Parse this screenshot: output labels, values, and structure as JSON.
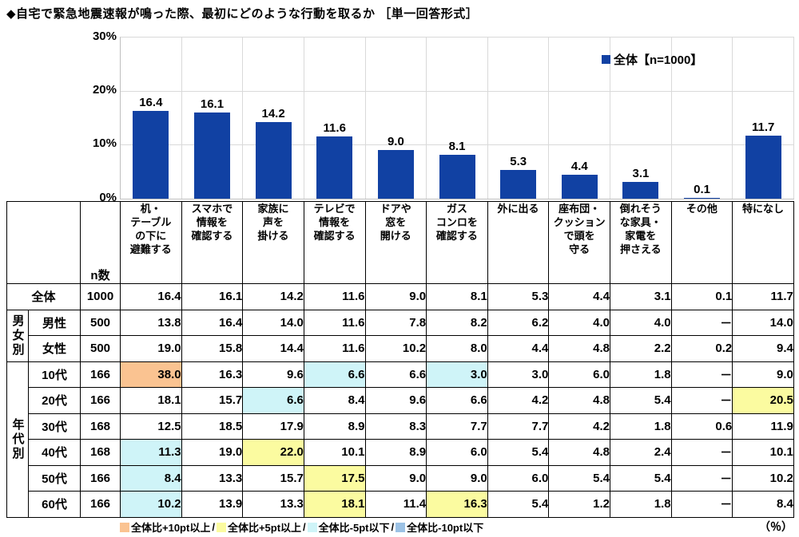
{
  "title": "◆自宅で緊急地震速報が鳴った際、最初にどのような行動を取るか ［単一回答形式］",
  "chart_data": {
    "type": "bar",
    "title": "自宅で緊急地震速報が鳴った際、最初にどのような行動を取るか（単一回答形式）",
    "categories": [
      "机・テーブルの下に避難する",
      "スマホで情報を確認する",
      "家族に声を掛ける",
      "テレビで情報を確認する",
      "ドアや窓を開ける",
      "ガスコンロを確認する",
      "外に出る",
      "座布団・クッションで頭を守る",
      "倒れそうな家具・家電を押さえる",
      "その他",
      "特になし"
    ],
    "values": [
      16.4,
      16.1,
      14.2,
      11.6,
      9.0,
      8.1,
      5.3,
      4.4,
      3.1,
      0.1,
      11.7
    ],
    "labels": [
      "16.4",
      "16.1",
      "14.2",
      "11.6",
      "9.0",
      "8.1",
      "5.3",
      "4.4",
      "3.1",
      "0.1",
      "11.7"
    ],
    "series_name": "全体【n=1000】",
    "legend_label": "全体【n=1000】",
    "xlabel": "",
    "ylabel": "%",
    "ylim": [
      0,
      30
    ],
    "yticks": [
      "30%",
      "20%",
      "10%",
      "0%"
    ],
    "grid": "on",
    "legend_position": "top-right",
    "bar_color": "#1141a3"
  },
  "table": {
    "n_header": "n数",
    "col_header_lines": [
      [
        "机・",
        "テーブル",
        "の下に",
        "避難する"
      ],
      [
        "スマホで",
        "情報を",
        "確認する"
      ],
      [
        "家族に",
        "声を",
        "掛ける"
      ],
      [
        "テレビで",
        "情報を",
        "確認する"
      ],
      [
        "ドアや",
        "窓を",
        "開ける"
      ],
      [
        "ガス",
        "コンロを",
        "確認する"
      ],
      [
        "外に出る"
      ],
      [
        "座布団・",
        "クッション",
        "で頭を",
        "守る"
      ],
      [
        "倒れそう",
        "な家具・",
        "家電を",
        "押さえる"
      ],
      [
        "その他"
      ],
      [
        "特になし"
      ]
    ],
    "rows": [
      {
        "group": null,
        "group_span": 0,
        "merge_left": true,
        "label": "全体",
        "n": "1000",
        "values": [
          "16.4",
          "16.1",
          "14.2",
          "11.6",
          "9.0",
          "8.1",
          "5.3",
          "4.4",
          "3.1",
          "0.1",
          "11.7"
        ],
        "hl": [
          null,
          null,
          null,
          null,
          null,
          null,
          null,
          null,
          null,
          null,
          null
        ]
      },
      {
        "group": "男女別",
        "group_span": 2,
        "merge_left": false,
        "label": "男性",
        "n": "500",
        "values": [
          "13.8",
          "16.4",
          "14.0",
          "11.6",
          "7.8",
          "8.2",
          "6.2",
          "4.0",
          "4.0",
          "－",
          "14.0"
        ],
        "hl": [
          null,
          null,
          null,
          null,
          null,
          null,
          null,
          null,
          null,
          null,
          null
        ]
      },
      {
        "group": null,
        "group_span": 0,
        "merge_left": false,
        "label": "女性",
        "n": "500",
        "values": [
          "19.0",
          "15.8",
          "14.4",
          "11.6",
          "10.2",
          "8.0",
          "4.4",
          "4.8",
          "2.2",
          "0.2",
          "9.4"
        ],
        "hl": [
          null,
          null,
          null,
          null,
          null,
          null,
          null,
          null,
          null,
          null,
          null
        ]
      },
      {
        "group": "年代別",
        "group_span": 6,
        "merge_left": false,
        "label": "10代",
        "n": "166",
        "values": [
          "38.0",
          "16.3",
          "9.6",
          "6.6",
          "6.6",
          "3.0",
          "3.0",
          "6.0",
          "1.8",
          "－",
          "9.0"
        ],
        "hl": [
          "plus10",
          null,
          null,
          "minus5",
          null,
          "minus5",
          null,
          null,
          null,
          null,
          null
        ]
      },
      {
        "group": null,
        "group_span": 0,
        "merge_left": false,
        "label": "20代",
        "n": "166",
        "values": [
          "18.1",
          "15.7",
          "6.6",
          "8.4",
          "9.6",
          "6.6",
          "4.2",
          "4.8",
          "5.4",
          "－",
          "20.5"
        ],
        "hl": [
          null,
          null,
          "minus5",
          null,
          null,
          null,
          null,
          null,
          null,
          null,
          "plus5"
        ]
      },
      {
        "group": null,
        "group_span": 0,
        "merge_left": false,
        "label": "30代",
        "n": "168",
        "values": [
          "12.5",
          "18.5",
          "17.9",
          "8.9",
          "8.3",
          "7.7",
          "7.7",
          "4.2",
          "1.8",
          "0.6",
          "11.9"
        ],
        "hl": [
          null,
          null,
          null,
          null,
          null,
          null,
          null,
          null,
          null,
          null,
          null
        ]
      },
      {
        "group": null,
        "group_span": 0,
        "merge_left": false,
        "label": "40代",
        "n": "168",
        "values": [
          "11.3",
          "19.0",
          "22.0",
          "10.1",
          "8.9",
          "6.0",
          "5.4",
          "4.8",
          "2.4",
          "－",
          "10.1"
        ],
        "hl": [
          "minus5",
          null,
          "plus5",
          null,
          null,
          null,
          null,
          null,
          null,
          null,
          null
        ]
      },
      {
        "group": null,
        "group_span": 0,
        "merge_left": false,
        "label": "50代",
        "n": "166",
        "values": [
          "8.4",
          "13.3",
          "15.7",
          "17.5",
          "9.0",
          "9.0",
          "6.0",
          "5.4",
          "5.4",
          "－",
          "10.2"
        ],
        "hl": [
          "minus5",
          null,
          null,
          "plus5",
          null,
          null,
          null,
          null,
          null,
          null,
          null
        ]
      },
      {
        "group": null,
        "group_span": 0,
        "merge_left": false,
        "label": "60代",
        "n": "166",
        "values": [
          "10.2",
          "13.9",
          "13.3",
          "18.1",
          "11.4",
          "16.3",
          "5.4",
          "1.2",
          "1.8",
          "－",
          "8.4"
        ],
        "hl": [
          "minus5",
          null,
          null,
          "plus5",
          null,
          "plus5",
          null,
          null,
          null,
          null,
          null
        ]
      }
    ]
  },
  "legend": {
    "items": [
      {
        "key": "plus10",
        "label": "全体比+10pt以上",
        "color": "#fac391"
      },
      {
        "key": "plus5",
        "label": "全体比+5pt以上",
        "color": "#fbfba0"
      },
      {
        "key": "minus5",
        "label": "全体比-5pt以下",
        "color": "#cff4f8"
      },
      {
        "key": "minus10",
        "label": "全体比-10pt以下",
        "color": "#9cc2e5"
      }
    ],
    "separator": "/",
    "unit": "（％）"
  }
}
